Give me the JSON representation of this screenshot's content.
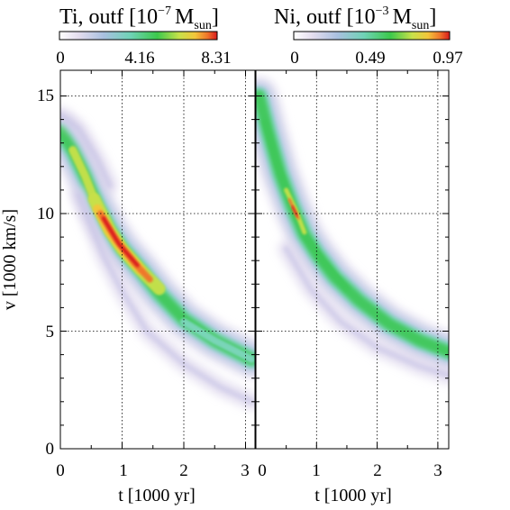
{
  "chart_data": [
    {
      "type": "heatmap",
      "colorbar": {
        "title_main": "Ti, outf [10",
        "title_exp": "−7",
        "title_unit": "M",
        "title_unit_sub": "sun",
        "title_close": "]",
        "ticks": [
          "0",
          "4.16",
          "8.31"
        ],
        "range": [
          0,
          8.31
        ]
      },
      "xlabel": "t [1000 yr]",
      "ylabel": "v [1000 km/s]",
      "xlim": [
        0,
        3.1
      ],
      "ylim": [
        0,
        15.7
      ],
      "xticks": [
        "0",
        "1",
        "2",
        "3"
      ],
      "yticks": [
        "0",
        "5",
        "10",
        "15"
      ],
      "grid": true,
      "bands": [
        {
          "name": "main",
          "points": [
            [
              0.0,
              13.5
            ],
            [
              0.2,
              12.7
            ],
            [
              0.4,
              11.6
            ],
            [
              0.6,
              10.3
            ],
            [
              0.8,
              9.3
            ],
            [
              1.0,
              8.5
            ],
            [
              1.3,
              7.6
            ],
            [
              1.6,
              6.6
            ],
            [
              2.0,
              5.5
            ],
            [
              2.5,
              4.6
            ],
            [
              3.1,
              3.8
            ]
          ],
          "peak": 8.31
        },
        {
          "name": "faint-upper",
          "points": [
            [
              0.0,
              14.2
            ],
            [
              0.3,
              13.6
            ],
            [
              0.6,
              12.3
            ],
            [
              0.8,
              11.2
            ]
          ],
          "peak": 1.2
        },
        {
          "name": "faint-lower",
          "points": [
            [
              0.3,
              10.8
            ],
            [
              0.7,
              8.2
            ],
            [
              1.0,
              6.7
            ],
            [
              1.4,
              5.0
            ],
            [
              2.0,
              3.6
            ],
            [
              2.6,
              2.6
            ],
            [
              3.1,
              2.0
            ]
          ],
          "peak": 1.6
        }
      ]
    },
    {
      "type": "heatmap",
      "colorbar": {
        "title_main": "Ni, outf [10",
        "title_exp": "−3",
        "title_unit": "M",
        "title_unit_sub": "sun",
        "title_close": "]",
        "ticks": [
          "0",
          "0.49",
          "0.97"
        ],
        "range": [
          0,
          0.97
        ]
      },
      "xlabel": "t [1000 yr]",
      "xlim": [
        0,
        3.2
      ],
      "ylim": [
        0,
        15.7
      ],
      "xticks": [
        "1",
        "2",
        "3"
      ],
      "grid": true,
      "bands": [
        {
          "name": "main",
          "points": [
            [
              0.05,
              15.0
            ],
            [
              0.2,
              13.5
            ],
            [
              0.4,
              11.7
            ],
            [
              0.6,
              10.3
            ],
            [
              0.8,
              9.1
            ],
            [
              1.0,
              8.3
            ],
            [
              1.3,
              7.3
            ],
            [
              1.7,
              6.3
            ],
            [
              2.2,
              5.3
            ],
            [
              2.7,
              4.6
            ],
            [
              3.2,
              4.1
            ]
          ],
          "peak": 0.97
        },
        {
          "name": "faint-lower",
          "points": [
            [
              0.5,
              8.5
            ],
            [
              0.9,
              6.8
            ],
            [
              1.4,
              5.4
            ],
            [
              2.0,
              4.3
            ],
            [
              2.7,
              3.5
            ],
            [
              3.2,
              3.1
            ]
          ],
          "peak": 0.12
        }
      ]
    }
  ]
}
